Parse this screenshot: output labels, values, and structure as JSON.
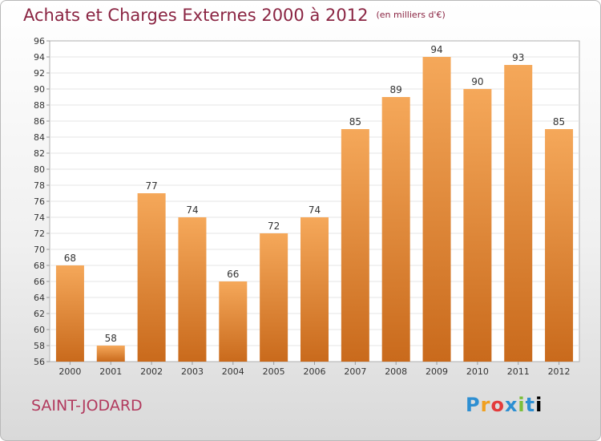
{
  "title": "Achats et Charges Externes 2000 à 2012",
  "subtitle": "(en milliers d'€)",
  "commune": "SAINT-JODARD",
  "logo": [
    "P",
    "r",
    "o",
    "x",
    "i",
    "t",
    "i"
  ],
  "colors": {
    "bar_top": "#f5a85a",
    "bar_bottom": "#c96a1c",
    "title": "#8a2442"
  },
  "chart_data": {
    "type": "bar",
    "title": "Achats et Charges Externes 2000 à 2012",
    "subtitle": "(en milliers d'€)",
    "xlabel": "",
    "ylabel": "",
    "categories": [
      "2000",
      "2001",
      "2002",
      "2003",
      "2004",
      "2005",
      "2006",
      "2007",
      "2008",
      "2009",
      "2010",
      "2011",
      "2012"
    ],
    "values": [
      68,
      58,
      77,
      74,
      66,
      72,
      74,
      85,
      89,
      94,
      90,
      93,
      85
    ],
    "ylim": [
      56,
      96
    ],
    "ytick_step": 2,
    "grid": true
  }
}
